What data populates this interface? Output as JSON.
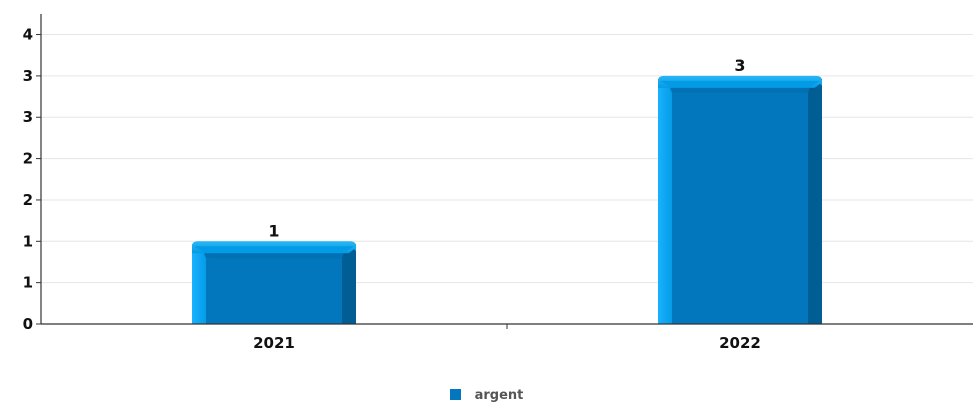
{
  "chart_data": {
    "type": "bar",
    "categories": [
      "2021",
      "2022"
    ],
    "series": [
      {
        "name": "argent",
        "values": [
          1,
          3
        ],
        "color": "#0277bd"
      }
    ],
    "ylim": [
      0,
      3.7
    ],
    "yticks": [
      0,
      0.5,
      1,
      1.5,
      2,
      2.5,
      3,
      3.5
    ],
    "ytick_labels": [
      "0",
      "1",
      "1",
      "2",
      "2",
      "3",
      "3",
      "4"
    ],
    "data_labels": [
      "1",
      "3"
    ],
    "grid": true,
    "legend_position": "bottom",
    "title": "",
    "xlabel": "",
    "ylabel": ""
  }
}
